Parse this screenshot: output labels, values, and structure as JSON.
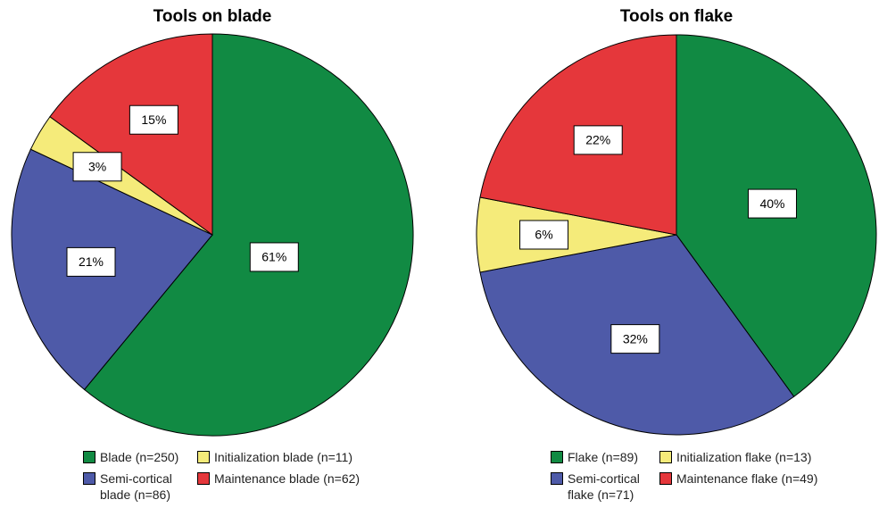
{
  "chart_data": [
    {
      "type": "pie",
      "title": "Tools on blade",
      "categories": [
        "Blade (n=250)",
        "Semi-cortical blade (n=86)",
        "Initialization blade (n=11)",
        "Maintenance blade (n=62)"
      ],
      "values": [
        61,
        21,
        3,
        15
      ],
      "value_labels": [
        "61%",
        "21%",
        "3%",
        "15%"
      ],
      "colors": [
        "#118a43",
        "#4e5aa8",
        "#f5eb7a",
        "#e5373b"
      ]
    },
    {
      "type": "pie",
      "title": "Tools on flake",
      "categories": [
        "Flake (n=89)",
        "Semi-cortical flake (n=71)",
        "Initialization flake (n=13)",
        "Maintenance flake (n=49)"
      ],
      "values": [
        40,
        32,
        6,
        22
      ],
      "value_labels": [
        "40%",
        "32%",
        "6%",
        "22%"
      ],
      "colors": [
        "#118a43",
        "#4e5aa8",
        "#f5eb7a",
        "#e5373b"
      ]
    }
  ]
}
